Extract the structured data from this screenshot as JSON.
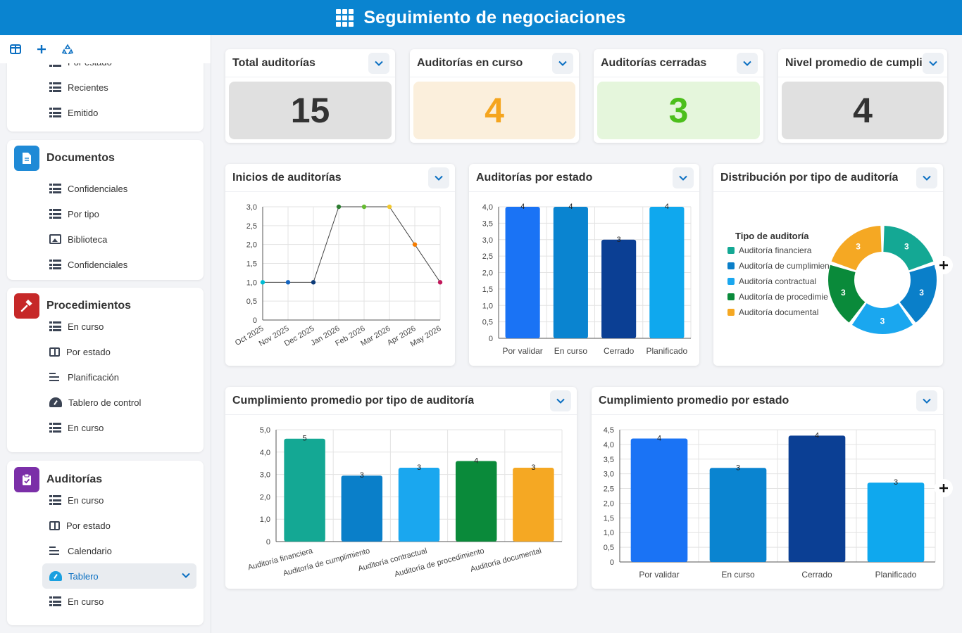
{
  "header": {
    "title": "Seguimiento de negociaciones",
    "icon": "apps-grid-icon"
  },
  "sidebar": {
    "toolbar": [
      {
        "icon": "panel-icon"
      },
      {
        "icon": "plus-icon"
      },
      {
        "icon": "recycle-icon"
      }
    ],
    "top_partial": {
      "cut_label": "Por estado",
      "items": [
        {
          "label": "Recientes",
          "icon": "table-icon"
        },
        {
          "label": "Emitido",
          "icon": "table-icon"
        }
      ]
    },
    "sections": [
      {
        "title": "Documentos",
        "icon": "document-icon",
        "color": "#1f8ad6",
        "items": [
          {
            "label": "Confidenciales",
            "icon": "table-icon"
          },
          {
            "label": "Por tipo",
            "icon": "table-icon"
          },
          {
            "label": "Biblioteca",
            "icon": "image-icon"
          },
          {
            "label": "Confidenciales",
            "icon": "table-icon"
          }
        ]
      },
      {
        "title": "Procedimientos",
        "icon": "gavel-icon",
        "color": "#c62828",
        "items": [
          {
            "label": "En curso",
            "icon": "table-icon"
          },
          {
            "label": "Por estado",
            "icon": "book-icon"
          },
          {
            "label": "Planificación",
            "icon": "lines-icon"
          },
          {
            "label": "Tablero de control",
            "icon": "gauge-icon"
          },
          {
            "label": "En curso",
            "icon": "table-icon"
          }
        ]
      },
      {
        "title": "Auditorías",
        "icon": "clipboard-check-icon",
        "color": "#7b2fa8",
        "items": [
          {
            "label": "En curso",
            "icon": "table-icon"
          },
          {
            "label": "Por estado",
            "icon": "book-icon"
          },
          {
            "label": "Calendario",
            "icon": "lines-icon"
          },
          {
            "label": "Tablero",
            "icon": "gauge-icon",
            "active": true
          },
          {
            "label": "En curso",
            "icon": "table-icon"
          }
        ]
      }
    ]
  },
  "kpis": [
    {
      "title": "Total auditorías",
      "value": "15",
      "bg": "#e0e0e0",
      "fg": "#333333"
    },
    {
      "title": "Auditorías en curso",
      "value": "4",
      "bg": "#fbefdc",
      "fg": "#f5a51e"
    },
    {
      "title": "Auditorías cerradas",
      "value": "3",
      "bg": "#e5f6dc",
      "fg": "#4cbf1c"
    },
    {
      "title": "Nivel promedio de cumplimiento",
      "value": "4",
      "bg": "#e0e0e0",
      "fg": "#333333"
    }
  ],
  "charts": {
    "inicios": {
      "title": "Inicios de auditorías"
    },
    "estado": {
      "title": "Auditorías por estado"
    },
    "distribucion": {
      "title": "Distribución por tipo de auditoría"
    },
    "cumpl_tipo": {
      "title": "Cumplimiento promedio por tipo de auditoría"
    },
    "cumpl_estado": {
      "title": "Cumplimiento promedio por estado"
    }
  },
  "chart_data": [
    {
      "id": "inicios",
      "type": "line",
      "title": "Inicios de auditorías",
      "categories": [
        "Oct 2025",
        "Nov 2025",
        "Dec 2025",
        "Jan 2026",
        "Feb 2026",
        "Mar 2026",
        "Apr 2026",
        "May 2026"
      ],
      "values": [
        1,
        1,
        1,
        3,
        3,
        3,
        2,
        1
      ],
      "point_colors": [
        "#00bcd4",
        "#1565c0",
        "#0d3c7a",
        "#2e7d32",
        "#66bb33",
        "#f2c82e",
        "#f57c00",
        "#c2185b"
      ],
      "ylim": [
        0,
        3
      ],
      "yticks": [
        "0",
        "0,5",
        "1,0",
        "1,5",
        "2,0",
        "2,5",
        "3,0"
      ],
      "grid": true
    },
    {
      "id": "estado",
      "type": "bar",
      "title": "Auditorías por estado",
      "categories": [
        "Por validar",
        "En curso",
        "Cerrado",
        "Planificado"
      ],
      "values": [
        4,
        4,
        3,
        4
      ],
      "colors": [
        "#1a73f5",
        "#0a84d0",
        "#0b3f94",
        "#0fa8ee"
      ],
      "data_labels": [
        "4",
        "4",
        "3",
        "4"
      ],
      "ylim": [
        0,
        4
      ],
      "yticks": [
        "0",
        "0,5",
        "1,0",
        "1,5",
        "2,0",
        "2,5",
        "3,0",
        "3,5",
        "4,0"
      ],
      "grid": true
    },
    {
      "id": "distribucion",
      "type": "pie",
      "title": "Distribución por tipo de auditoría",
      "legend_title": "Tipo de auditoría",
      "legend_position": "left",
      "categories": [
        "Auditoría financiera",
        "Auditoría de cumplimiento",
        "Auditoría contractual",
        "Auditoría de procedimiento",
        "Auditoría documental"
      ],
      "legend_labels": [
        "Auditoría financiera",
        "Auditoría de cumplimien",
        "Auditoría contractual",
        "Auditoría de procedimie",
        "Auditoría documental"
      ],
      "values": [
        3,
        3,
        3,
        3,
        3
      ],
      "colors": [
        "#14a894",
        "#0a7fc9",
        "#1aa7ef",
        "#0a8a3a",
        "#f5a823"
      ]
    },
    {
      "id": "cumpl_tipo",
      "type": "bar",
      "title": "Cumplimiento promedio por tipo de auditoría",
      "categories": [
        "Auditoría financiera",
        "Auditoría de cumplimiento",
        "Auditoría contractual",
        "Auditoría de procedimiento",
        "Auditoría documental"
      ],
      "values": [
        4.6,
        2.95,
        3.3,
        3.6,
        3.3
      ],
      "data_labels": [
        "5",
        "3",
        "3",
        "4",
        "3"
      ],
      "colors": [
        "#14a894",
        "#0a7fc9",
        "#1aa7ef",
        "#0a8a3a",
        "#f5a823"
      ],
      "ylim": [
        0,
        5
      ],
      "yticks": [
        "0",
        "1,0",
        "2,0",
        "3,0",
        "4,0",
        "5,0"
      ],
      "grid": true
    },
    {
      "id": "cumpl_estado",
      "type": "bar",
      "title": "Cumplimiento promedio por estado",
      "categories": [
        "Por validar",
        "En curso",
        "Cerrado",
        "Planificado"
      ],
      "values": [
        4.2,
        3.2,
        4.3,
        2.7
      ],
      "data_labels": [
        "4",
        "3",
        "4",
        "3"
      ],
      "colors": [
        "#1a73f5",
        "#0a84d0",
        "#0b3f94",
        "#0fa8ee"
      ],
      "ylim": [
        0,
        4.5
      ],
      "yticks": [
        "0",
        "0,5",
        "1,0",
        "1,5",
        "2,0",
        "2,5",
        "3,0",
        "3,5",
        "4,0",
        "4,5"
      ],
      "grid": true
    }
  ]
}
